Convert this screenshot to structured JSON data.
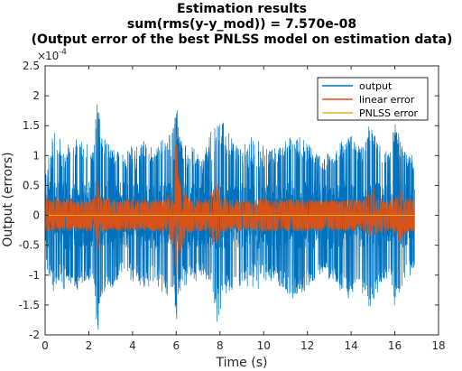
{
  "chart_data": {
    "type": "line",
    "title": [
      "Estimation results",
      "sum(rms(y-y_mod)) = 7.570e-08",
      "(Output error of the best PNLSS model on estimation data)"
    ],
    "xlabel": "Time (s)",
    "ylabel": "Output (errors)",
    "y_exponent_label": "10",
    "y_exponent_power": "-4",
    "xlim": [
      0,
      18
    ],
    "ylim": [
      -0.0002,
      0.00025
    ],
    "xticks": [
      "0",
      "2",
      "4",
      "6",
      "8",
      "10",
      "12",
      "14",
      "16",
      "18"
    ],
    "yticks": [
      "-2",
      "-1.5",
      "-1",
      "-0.5",
      "0",
      "0.5",
      "1",
      "1.5",
      "2",
      "2.5"
    ],
    "x_end": 16.9,
    "grid": false,
    "legend_placement": "top-right",
    "series": [
      {
        "name": "output",
        "color": "#0072BD",
        "typical_amplitude": 5e-05,
        "envelope_x": [
          0,
          0.4,
          1.1,
          1.5,
          2.2,
          2.4,
          2.6,
          3.1,
          3.6,
          4.2,
          4.6,
          5.0,
          5.4,
          5.9,
          6.0,
          6.1,
          6.3,
          6.8,
          7.2,
          7.7,
          7.9,
          8.1,
          8.7,
          9.3,
          9.8,
          10.3,
          10.8,
          11.3,
          11.8,
          12.3,
          12.8,
          13.3,
          13.9,
          14.4,
          14.9,
          15.1,
          15.4,
          15.8,
          16.0,
          16.3,
          16.6,
          16.9
        ],
        "envelope_max": [
          7e-05,
          0.00011,
          0.000105,
          0.000135,
          0.00011,
          0.000205,
          0.00013,
          0.00012,
          9.5e-05,
          0.000105,
          0.00013,
          0.00011,
          0.000135,
          0.00012,
          0.00021,
          0.00014,
          0.000105,
          0.0001,
          9e-05,
          0.00016,
          0.00015,
          0.00016,
          0.00012,
          0.000105,
          9.5e-05,
          0.00011,
          0.00012,
          0.000135,
          0.00013,
          0.00011,
          0.0001,
          0.00012,
          0.00014,
          0.00011,
          0.00015,
          0.000145,
          0.00011,
          0.0001,
          0.000155,
          0.00012,
          0.000105,
          0.0001
        ],
        "envelope_min": [
          -7.5e-05,
          -0.00014,
          -0.00012,
          -0.00013,
          -0.000105,
          -0.00017,
          -0.000135,
          -0.00011,
          -0.000105,
          -0.000125,
          -0.00012,
          -0.000105,
          -0.00013,
          -0.00015,
          -0.00018,
          -0.00016,
          -0.00012,
          -0.000115,
          -0.0001,
          -0.000125,
          -0.000195,
          -0.00014,
          -0.00012,
          -0.000135,
          -0.00013,
          -0.00011,
          -0.00012,
          -0.00014,
          -0.000125,
          -0.00011,
          -0.0001,
          -0.00011,
          -0.000145,
          -0.00012,
          -0.00016,
          -0.00015,
          -0.00011,
          -0.000105,
          -0.00016,
          -0.00012,
          -0.0001,
          -9e-05
        ]
      },
      {
        "name": "linear error",
        "color": "#D95319",
        "typical_amplitude": 2.5e-05,
        "envelope_x": [
          0,
          0.5,
          1.0,
          1.5,
          2.0,
          2.3,
          2.4,
          2.5,
          3.0,
          3.5,
          4.0,
          4.5,
          5.0,
          5.5,
          5.9,
          6.0,
          6.1,
          6.5,
          7.0,
          7.5,
          7.8,
          7.9,
          8.0,
          8.5,
          9.0,
          9.5,
          10.0,
          10.5,
          11.0,
          11.5,
          12.0,
          12.5,
          13.0,
          13.5,
          14.0,
          14.5,
          14.9,
          15.0,
          15.1,
          15.5,
          16.0,
          16.3,
          16.5,
          16.9
        ],
        "envelope_max": [
          2.8e-05,
          2.5e-05,
          2.7e-05,
          2.5e-05,
          2.6e-05,
          3e-05,
          6e-05,
          3.2e-05,
          2.5e-05,
          2.6e-05,
          2.5e-05,
          2.4e-05,
          2.6e-05,
          2.5e-05,
          5.5e-05,
          0.000145,
          7e-05,
          3e-05,
          2.6e-05,
          2.7e-05,
          5e-05,
          5.5e-05,
          3e-05,
          2.6e-05,
          2.5e-05,
          2.4e-05,
          3e-05,
          2.5e-05,
          2.6e-05,
          2.7e-05,
          2.5e-05,
          2.6e-05,
          2.5e-05,
          2.7e-05,
          2.6e-05,
          2.8e-05,
          3.5e-05,
          5e-05,
          3.5e-05,
          2.5e-05,
          2.8e-05,
          4.5e-05,
          3e-05,
          2.5e-05
        ],
        "envelope_min": [
          -2.8e-05,
          -2.5e-05,
          -2.7e-05,
          -2.5e-05,
          -2.6e-05,
          -3e-05,
          -5.5e-05,
          -3.2e-05,
          -2.5e-05,
          -2.6e-05,
          -2.5e-05,
          -2.4e-05,
          -2.6e-05,
          -2.5e-05,
          -6e-05,
          -0.00014,
          -7.5e-05,
          -3e-05,
          -2.6e-05,
          -2.7e-05,
          -6e-05,
          -5e-05,
          -3e-05,
          -2.6e-05,
          -2.5e-05,
          -2.4e-05,
          -3e-05,
          -2.5e-05,
          -2.6e-05,
          -2.7e-05,
          -2.5e-05,
          -2.6e-05,
          -2.5e-05,
          -2.7e-05,
          -2.6e-05,
          -2.8e-05,
          -4e-05,
          -5.5e-05,
          -3.5e-05,
          -2.5e-05,
          -2.8e-05,
          -5e-05,
          -3e-05,
          -2.5e-05
        ]
      },
      {
        "name": "PNLSS error",
        "color": "#EDB120",
        "typical_amplitude": 0.0
      }
    ]
  }
}
